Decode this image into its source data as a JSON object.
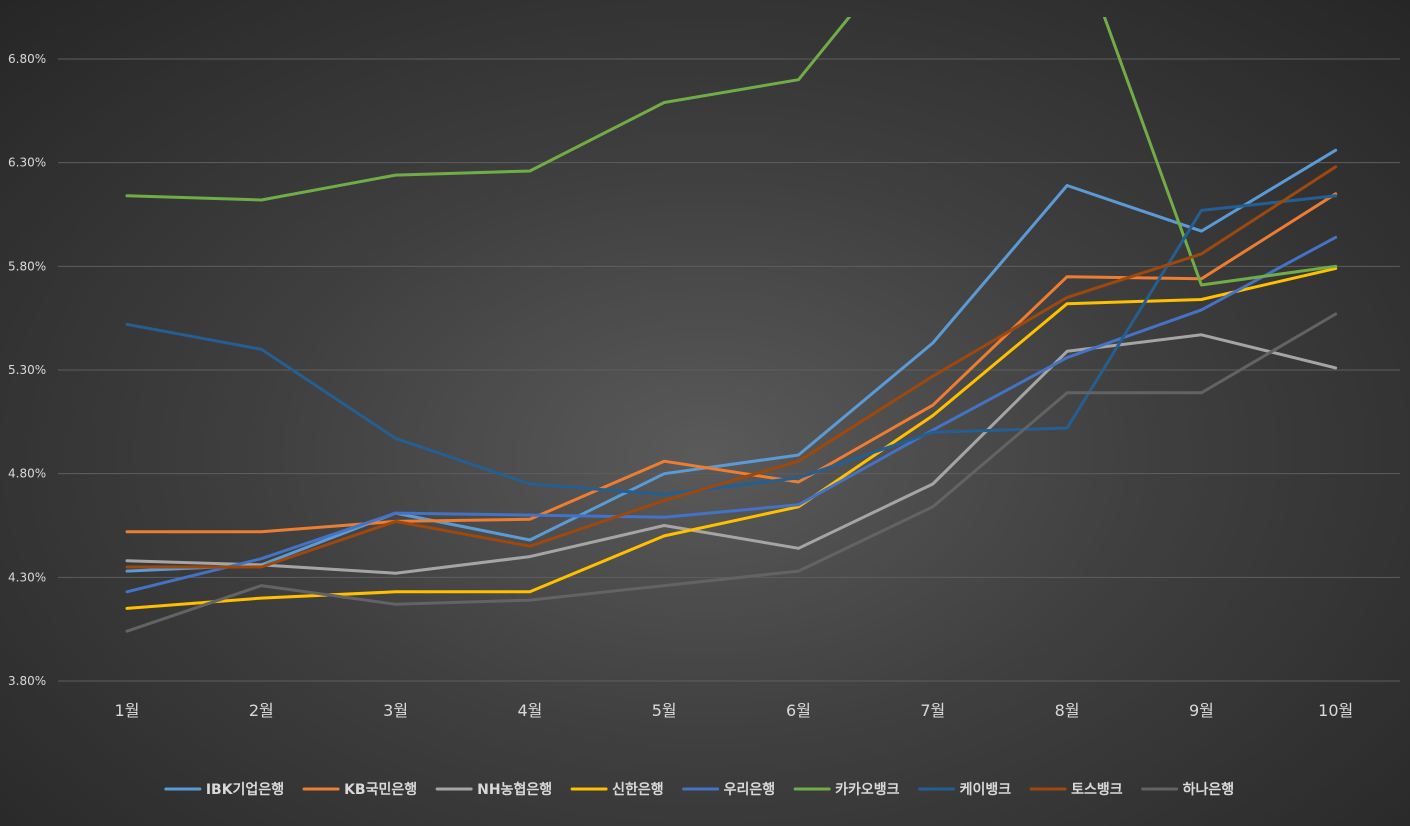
{
  "chart_data": {
    "type": "line",
    "title": "",
    "xlabel": "",
    "ylabel": "",
    "categories": [
      "1월",
      "2월",
      "3월",
      "4월",
      "5월",
      "6월",
      "7월",
      "8월",
      "9월",
      "10월"
    ],
    "y_ticks": [
      "3.80%",
      "4.30%",
      "4.80%",
      "5.30%",
      "5.80%",
      "6.30%",
      "6.80%"
    ],
    "y_tick_values": [
      3.8,
      4.3,
      4.8,
      5.3,
      5.8,
      6.3,
      6.8
    ],
    "ylim": [
      3.8,
      7.0
    ],
    "grid": true,
    "legend_position": "bottom",
    "series": [
      {
        "name": "IBK기업은행",
        "color": "#5b9bd5",
        "values": [
          4.33,
          4.36,
          4.61,
          4.48,
          4.8,
          4.89,
          5.43,
          6.19,
          5.97,
          6.36
        ]
      },
      {
        "name": "KB국민은행",
        "color": "#ed7d31",
        "values": [
          4.52,
          4.52,
          4.57,
          4.58,
          4.86,
          4.76,
          5.13,
          5.75,
          5.74,
          6.15
        ]
      },
      {
        "name": "NH농협은행",
        "color": "#a5a5a5",
        "values": [
          4.38,
          4.36,
          4.32,
          4.4,
          4.55,
          4.44,
          4.75,
          5.39,
          5.47,
          5.31
        ]
      },
      {
        "name": "신한은행",
        "color": "#ffc000",
        "values": [
          4.15,
          4.2,
          4.23,
          4.23,
          4.5,
          4.64,
          5.08,
          5.62,
          5.64,
          5.79
        ]
      },
      {
        "name": "우리은행",
        "color": "#4472c4",
        "values": [
          4.23,
          4.39,
          4.61,
          4.6,
          4.59,
          4.65,
          5.01,
          5.36,
          5.59,
          5.94
        ]
      },
      {
        "name": "카카오뱅크",
        "color": "#70ad47",
        "values": [
          6.14,
          6.12,
          6.24,
          6.26,
          6.59,
          6.7,
          7.5,
          7.5,
          5.71,
          5.8
        ]
      },
      {
        "name": "케이뱅크",
        "color": "#255e91",
        "values": [
          5.52,
          5.4,
          4.97,
          4.75,
          4.7,
          4.78,
          5.0,
          5.02,
          6.07,
          6.14
        ]
      },
      {
        "name": "토스뱅크",
        "color": "#9e480e",
        "values": [
          4.35,
          4.35,
          4.57,
          4.45,
          4.67,
          4.86,
          5.27,
          5.65,
          5.86,
          6.28
        ]
      },
      {
        "name": "하나은행",
        "color": "#636363",
        "values": [
          4.04,
          4.26,
          4.17,
          4.19,
          4.26,
          4.33,
          4.64,
          5.19,
          5.19,
          5.57
        ]
      }
    ]
  }
}
